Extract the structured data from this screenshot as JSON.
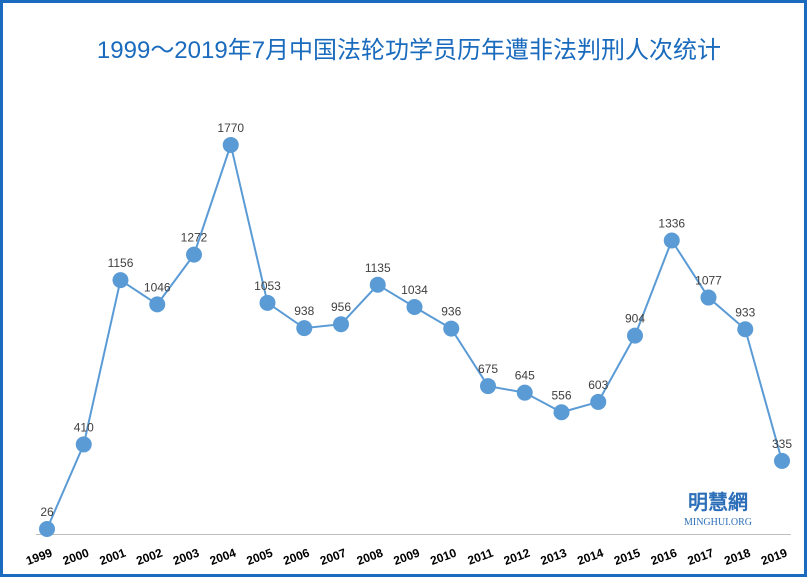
{
  "chart_data": {
    "type": "line",
    "title": "1999～2019年7月中国法轮功学员历年遭非法判刑人次统计",
    "categories": [
      "1999",
      "2000",
      "2001",
      "2002",
      "2003",
      "2004",
      "2005",
      "2006",
      "2007",
      "2008",
      "2009",
      "2010",
      "2011",
      "2012",
      "2013",
      "2014",
      "2015",
      "2016",
      "2017",
      "2018",
      "2019"
    ],
    "values": [
      26,
      410,
      1156,
      1046,
      1272,
      1770,
      1053,
      938,
      956,
      1135,
      1034,
      936,
      675,
      645,
      556,
      603,
      904,
      1336,
      1077,
      933,
      335
    ],
    "ylim": [
      0,
      1800
    ],
    "grid": false,
    "legend": "none",
    "colors": {
      "line": "#5b9bd5",
      "title": "#1a6bbd",
      "border": "#1a6bbd",
      "axis": "#bfbfbf",
      "label": "#404040"
    }
  },
  "watermark": {
    "chinese": "明慧網",
    "latin": "MINGHUI.ORG"
  }
}
